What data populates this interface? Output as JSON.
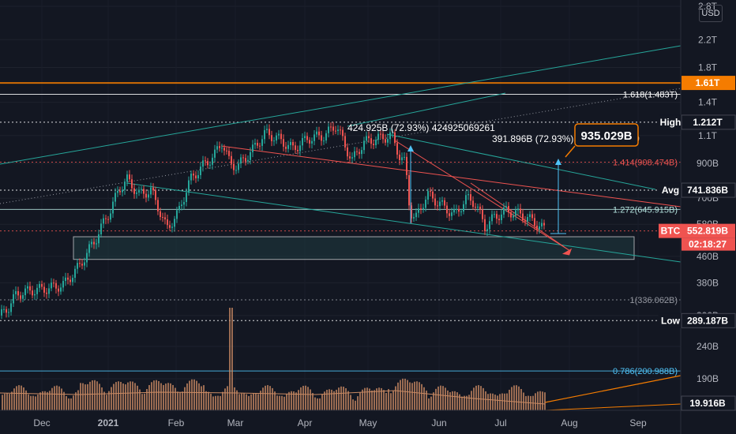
{
  "currency": "USD",
  "colors": {
    "background": "#131722",
    "up": "#26a69a",
    "down": "#ef5350",
    "volume": "#c98a63",
    "zone": "#1f3a40",
    "trend": "#26a69a",
    "orange": "#f57c00",
    "blue": "#4fc3f7"
  },
  "chart_data": {
    "type": "candlestick",
    "symbol": "BTC",
    "x_ticks": [
      "Dec",
      "2021",
      "Feb",
      "Mar",
      "Apr",
      "May",
      "Jun",
      "Jul",
      "Aug",
      "Sep"
    ],
    "y_ticks": [
      "2.8T",
      "2.2T",
      "1.8T",
      "1.4T",
      "1.1T",
      "900B",
      "700B",
      "580B",
      "460B",
      "380B",
      "300B",
      "240B",
      "190B"
    ],
    "price_path": [
      [
        0,
        300
      ],
      [
        10,
        320
      ],
      [
        20,
        350
      ],
      [
        40,
        360
      ],
      [
        60,
        365
      ],
      [
        80,
        375
      ],
      [
        100,
        430
      ],
      [
        120,
        520
      ],
      [
        140,
        650
      ],
      [
        150,
        750
      ],
      [
        160,
        800
      ],
      [
        175,
        720
      ],
      [
        190,
        740
      ],
      [
        210,
        560
      ],
      [
        225,
        630
      ],
      [
        240,
        800
      ],
      [
        255,
        880
      ],
      [
        270,
        950
      ],
      [
        280,
        1050
      ],
      [
        290,
        900
      ],
      [
        300,
        880
      ],
      [
        310,
        940
      ],
      [
        320,
        1000
      ],
      [
        335,
        1120
      ],
      [
        350,
        1080
      ],
      [
        370,
        1000
      ],
      [
        390,
        1080
      ],
      [
        410,
        1100
      ],
      [
        425,
        1190
      ],
      [
        435,
        1030
      ],
      [
        445,
        920
      ],
      [
        460,
        1050
      ],
      [
        480,
        1080
      ],
      [
        495,
        1100
      ],
      [
        505,
        950
      ],
      [
        512,
        900
      ],
      [
        518,
        640
      ],
      [
        525,
        600
      ],
      [
        540,
        720
      ],
      [
        560,
        660
      ],
      [
        575,
        620
      ],
      [
        590,
        700
      ],
      [
        600,
        680
      ],
      [
        613,
        570
      ],
      [
        625,
        610
      ],
      [
        640,
        640
      ],
      [
        660,
        620
      ],
      [
        680,
        580
      ],
      [
        690,
        552
      ]
    ],
    "volume_spike_label": null,
    "levels": [
      {
        "name": "fib-1.61",
        "value": 1610,
        "label": "1.61T",
        "color": "#f57c00",
        "tag": true
      },
      {
        "name": "fib-1.618",
        "value": 1483,
        "label": "1.618(1.483T)",
        "color": "#ffffff"
      },
      {
        "name": "high",
        "value": 1212,
        "label": "1.212T",
        "tag_label": "High",
        "color": "#ffffff"
      },
      {
        "name": "fib-1.414",
        "value": 908.474,
        "label": "1.414(908.474B)",
        "color": "#ef5350"
      },
      {
        "name": "avg",
        "value": 741.836,
        "label": "741.836B",
        "tag_label": "Avg",
        "color": "#ffffff"
      },
      {
        "name": "fib-1.272",
        "value": 645.915,
        "label": "1.272(645.915B)",
        "color": "#b2dfdb"
      },
      {
        "name": "last",
        "value": 552.819,
        "label": "552.819B",
        "tag_label": "BTC",
        "countdown": "02:18:27",
        "color": "#ef5350"
      },
      {
        "name": "fib-1",
        "value": 336.062,
        "label": "1(336.062B)",
        "color": "#9598a1"
      },
      {
        "name": "low",
        "value": 289.187,
        "label": "289.187B",
        "tag_label": "Low",
        "color": "#ffffff"
      },
      {
        "name": "fib-0.786",
        "value": 200.988,
        "label": "0.786(200.988B)",
        "color": "#4fc3f7"
      },
      {
        "name": "vol",
        "value": null,
        "label": "19.916B",
        "color": "#f57c00"
      }
    ],
    "annotations": {
      "measure1": "424.925B (72.93%) 424925069261",
      "measure2": "391.896B (72.93%) 391896129669",
      "target": "935.029B"
    }
  }
}
